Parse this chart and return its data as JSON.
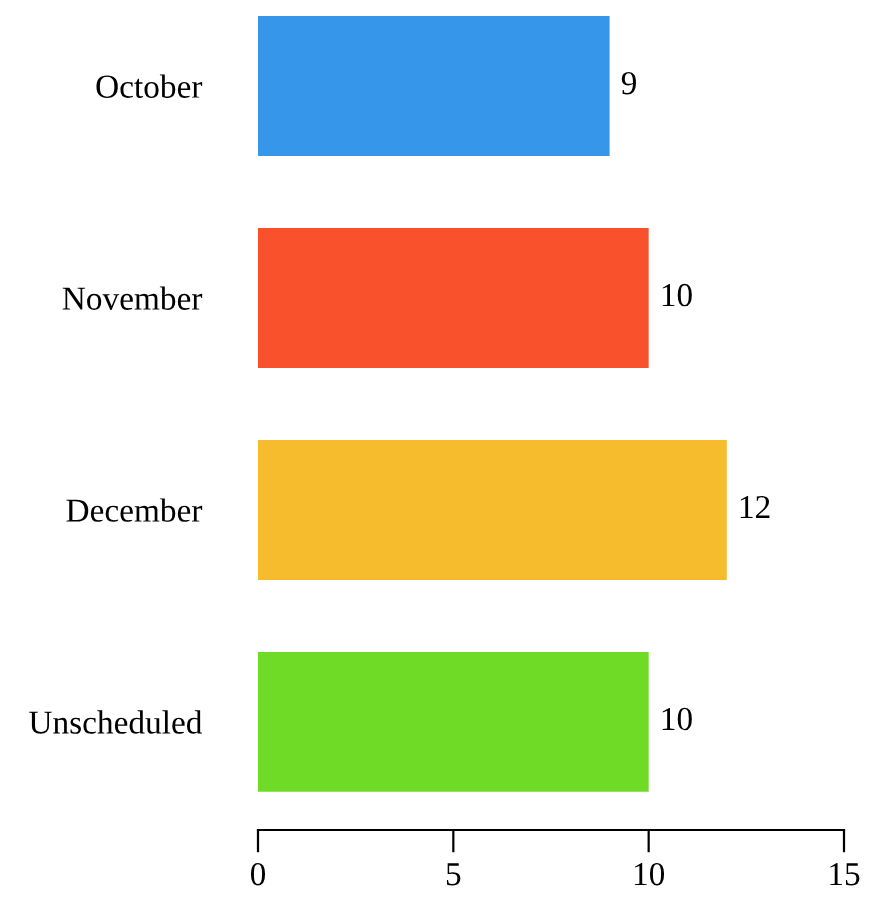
{
  "chart_data": {
    "type": "bar",
    "orientation": "horizontal",
    "categories": [
      "October",
      "November",
      "December",
      "Unscheduled"
    ],
    "values": [
      9,
      10,
      12,
      10
    ],
    "colors": [
      "#3596ea",
      "#f8512c",
      "#f7bb2e",
      "#6fdb27"
    ],
    "xlim": [
      0,
      15
    ],
    "xticks": [
      0,
      5,
      10,
      15
    ],
    "data_labels": true,
    "grid": false,
    "legend": false
  }
}
